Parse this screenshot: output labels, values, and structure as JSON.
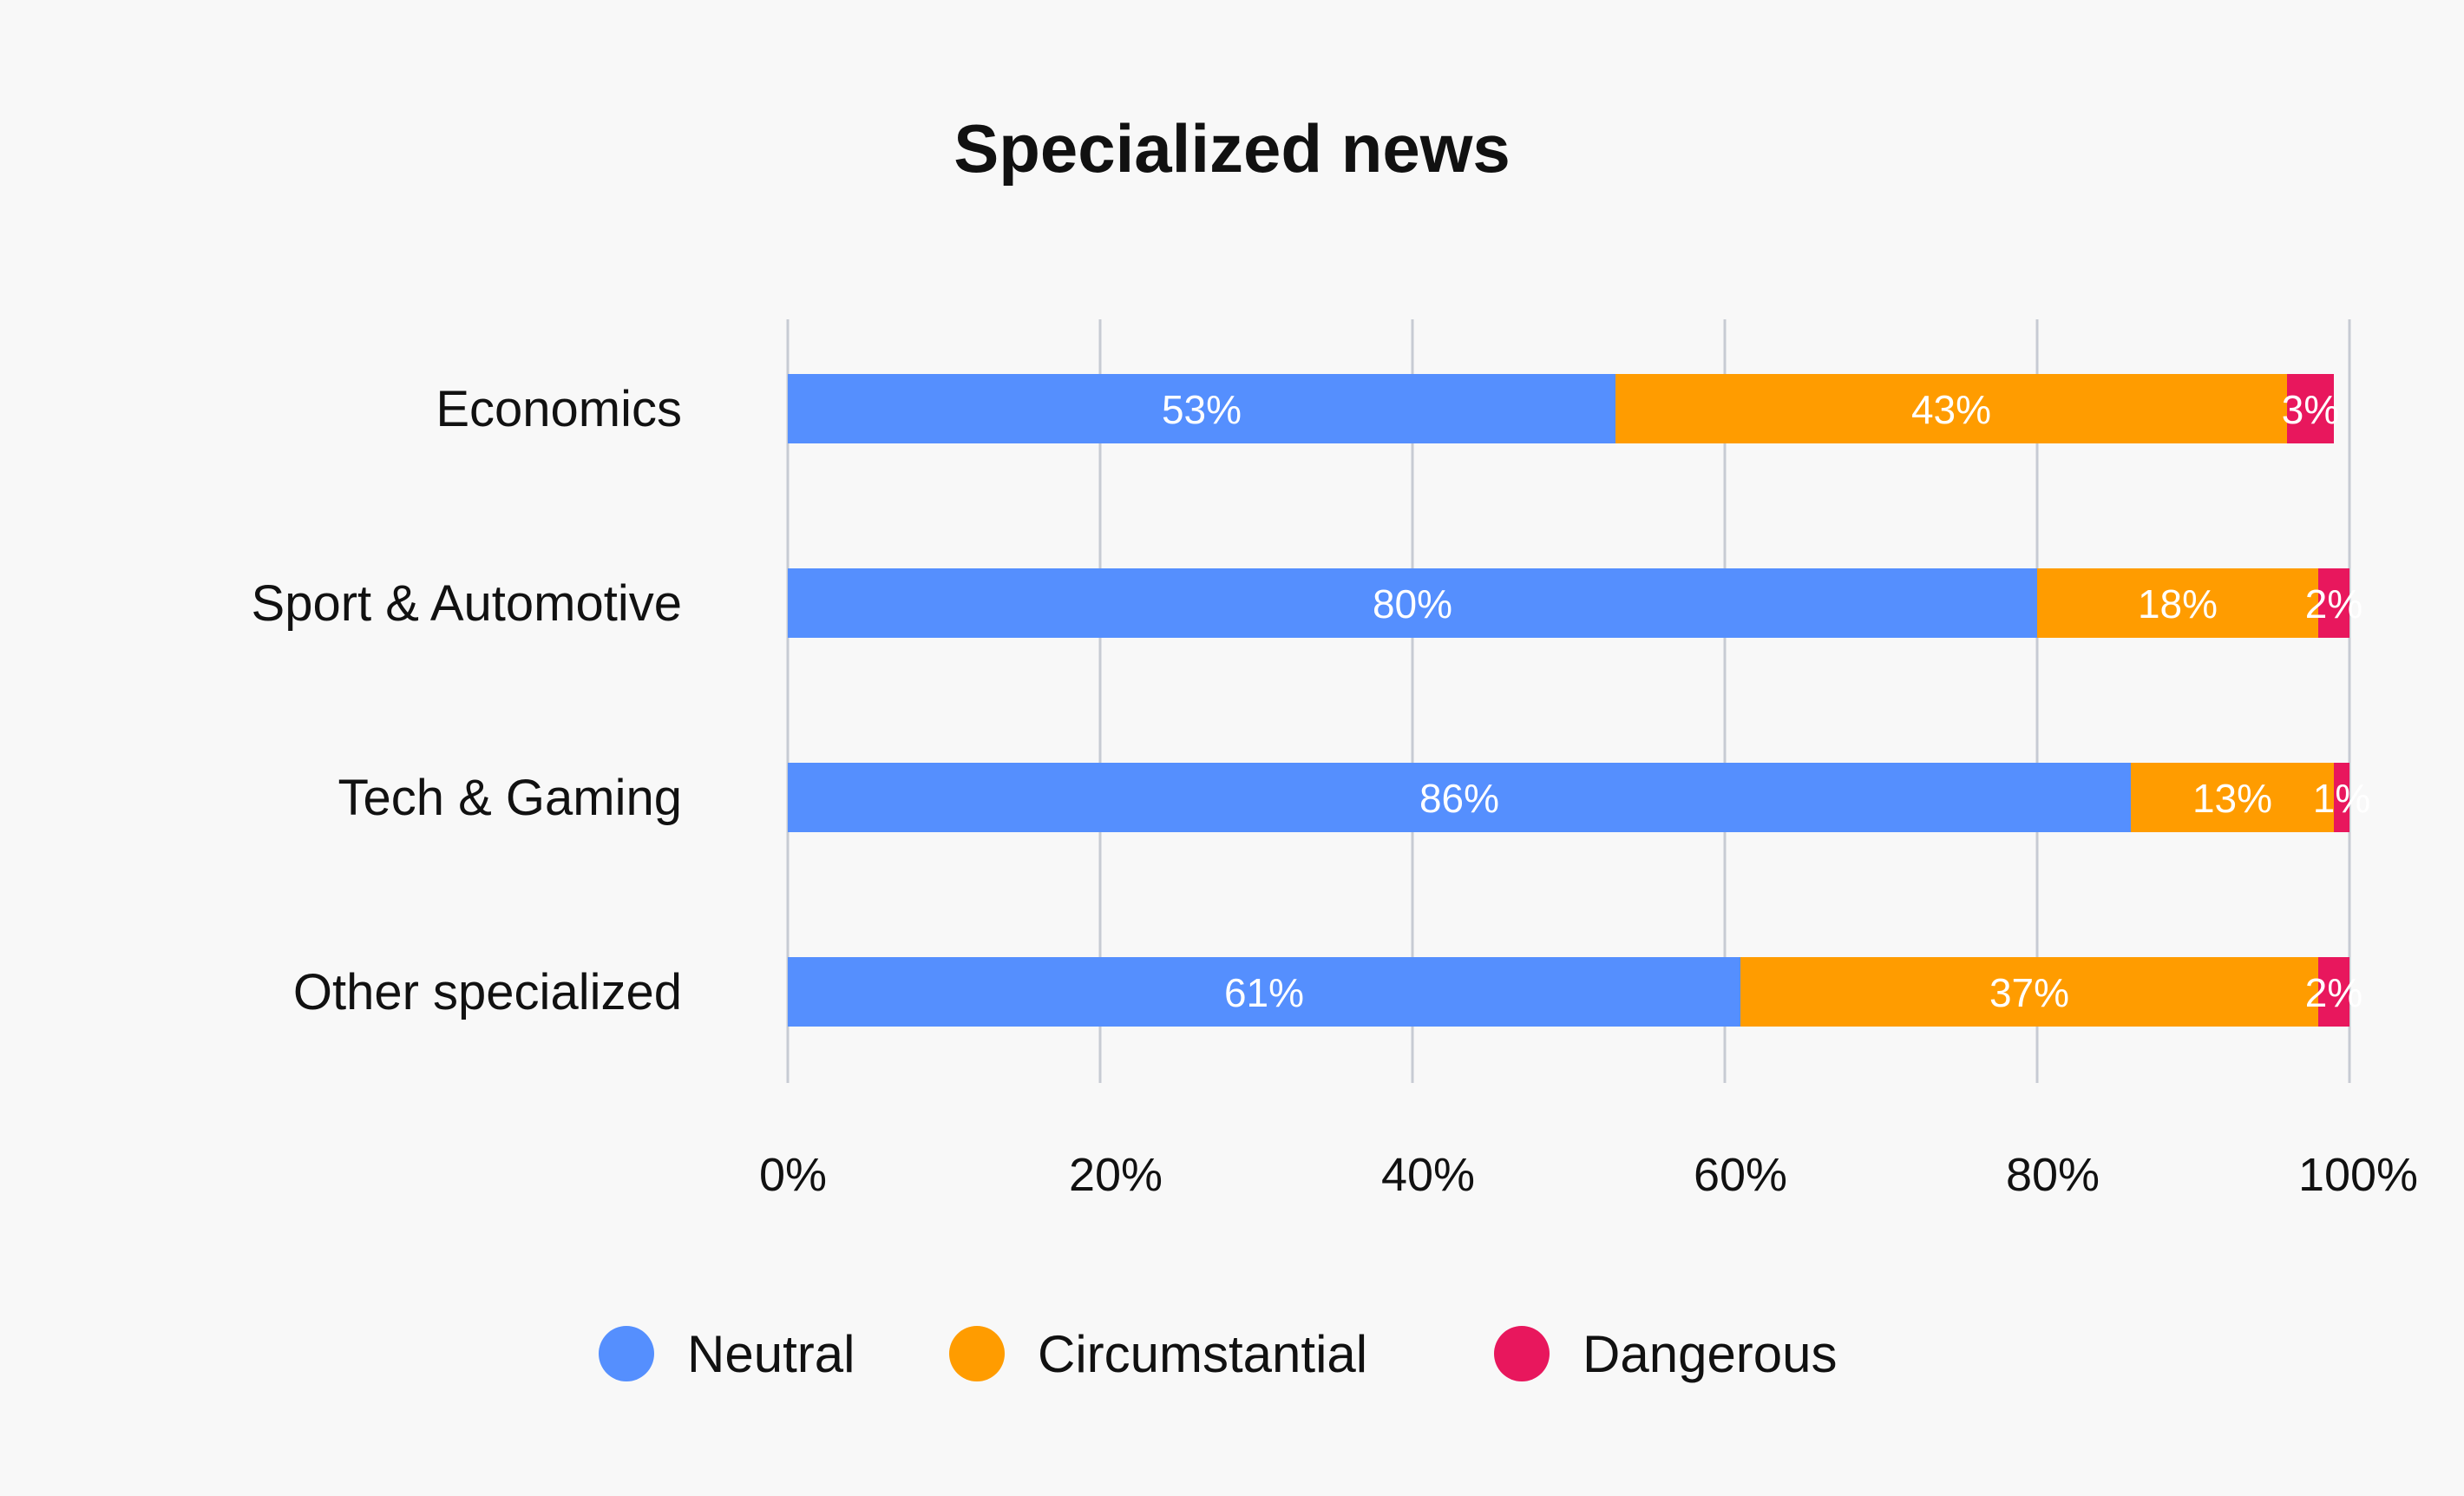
{
  "chart_data": {
    "type": "bar",
    "orientation": "horizontal",
    "stacked": true,
    "title": "Specialized news",
    "categories": [
      "Economics",
      "Sport & Automotive",
      "Tech & Gaming",
      "Other specialized"
    ],
    "series": [
      {
        "name": "Neutral",
        "values": [
          53,
          80,
          86,
          61
        ],
        "labels": [
          "53%",
          "80%",
          "86%",
          "61%"
        ],
        "color": "#558ffe"
      },
      {
        "name": "Circumstantial",
        "values": [
          43,
          18,
          13,
          37
        ],
        "labels": [
          "43%",
          "18%",
          "13%",
          "37%"
        ],
        "color": "#ff9c00"
      },
      {
        "name": "Dangerous",
        "values": [
          3,
          2,
          1,
          2
        ],
        "labels": [
          "3%",
          "2%",
          "1%",
          "2%"
        ],
        "color": "#e8175d"
      }
    ],
    "xlim": [
      0,
      100
    ],
    "xticks": [
      0,
      20,
      40,
      60,
      80,
      100
    ],
    "xtick_labels": [
      "0%",
      "20%",
      "40%",
      "60%",
      "80%",
      "100%"
    ],
    "grid": true,
    "legend_position": "bottom"
  },
  "colors": {
    "background": "#f8f8f8",
    "grid": "#c7cbd3",
    "text": "#111111",
    "bar_label": "#ffffff"
  }
}
